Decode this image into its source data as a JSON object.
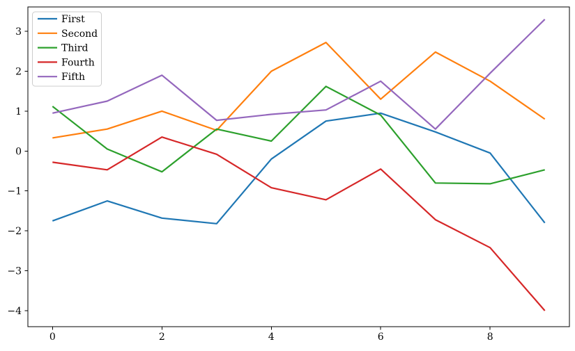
{
  "figure": {
    "background": "#ffffff",
    "spine_color": "#000000",
    "tick_color": "#000000",
    "legend": {
      "border_color": "#cccccc",
      "background": "rgba(255,255,255,0.8)",
      "position": "upper left"
    }
  },
  "chart_data": {
    "type": "line",
    "title": "",
    "xlabel": "",
    "ylabel": "",
    "grid": false,
    "x": [
      0,
      1,
      2,
      3,
      4,
      5,
      6,
      7,
      8,
      9
    ],
    "series": [
      {
        "name": "First",
        "color": "#1f77b4",
        "values": [
          -1.75,
          -1.25,
          -1.68,
          -1.82,
          -0.2,
          0.75,
          0.95,
          0.48,
          -0.05,
          -1.8
        ]
      },
      {
        "name": "Second",
        "color": "#ff7f0e",
        "values": [
          0.33,
          0.55,
          1.0,
          0.52,
          2.0,
          2.72,
          1.3,
          2.48,
          1.75,
          0.8
        ]
      },
      {
        "name": "Third",
        "color": "#2ca02c",
        "values": [
          1.12,
          0.05,
          -0.52,
          0.55,
          0.25,
          1.62,
          0.9,
          -0.8,
          -0.82,
          -0.47
        ]
      },
      {
        "name": "Fourth",
        "color": "#d62728",
        "values": [
          -0.28,
          -0.47,
          0.35,
          -0.08,
          -0.92,
          -1.22,
          -0.45,
          -1.72,
          -2.42,
          -4.0
        ]
      },
      {
        "name": "Fifth",
        "color": "#9467bd",
        "values": [
          0.95,
          1.25,
          1.9,
          0.77,
          0.92,
          1.03,
          1.75,
          0.55,
          1.95,
          3.3
        ]
      }
    ],
    "xlim": [
      -0.45,
      9.45
    ],
    "ylim": [
      -4.4,
      3.61
    ],
    "xticks": [
      0,
      2,
      4,
      6,
      8
    ],
    "xtick_labels": [
      "0",
      "2",
      "4",
      "6",
      "8"
    ],
    "yticks": [
      3,
      2,
      1,
      0,
      -1,
      -2,
      -3,
      -4
    ],
    "ytick_labels": [
      "3",
      "2",
      "1",
      "0",
      "−1",
      "−2",
      "−3",
      "−4"
    ],
    "legend_position": "upper left",
    "legend_entries": [
      "First",
      "Second",
      "Third",
      "Fourth",
      "Fifth"
    ]
  }
}
